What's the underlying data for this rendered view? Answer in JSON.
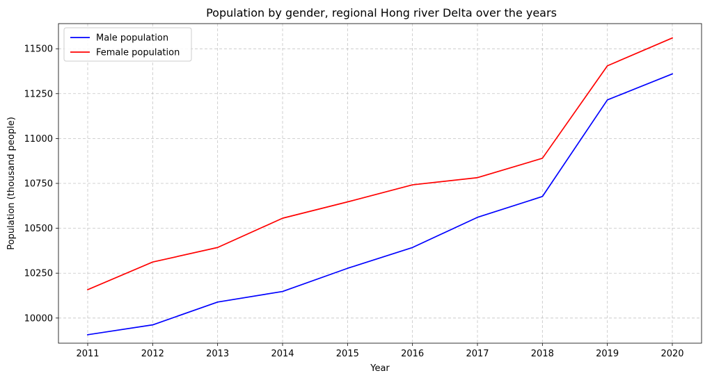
{
  "chart_data": {
    "type": "line",
    "title": "Population by gender, regional Hong river Delta over the years",
    "xlabel": "Year",
    "ylabel": "Population (thousand people)",
    "x": [
      2011,
      2012,
      2013,
      2014,
      2015,
      2016,
      2017,
      2018,
      2019,
      2020
    ],
    "ylim": [
      9860,
      11640
    ],
    "yticks": [
      10000,
      10250,
      10500,
      10750,
      11000,
      11250,
      11500
    ],
    "grid": true,
    "legend_position": "top-left",
    "series": [
      {
        "name": "Male population",
        "color": "#0000ff",
        "values": [
          9907,
          9962,
          10089,
          10148,
          10277,
          10393,
          10561,
          10677,
          11215,
          11360
        ]
      },
      {
        "name": "Female population",
        "color": "#ff0000",
        "values": [
          10158,
          10312,
          10393,
          10556,
          10647,
          10742,
          10782,
          10890,
          11405,
          11560
        ]
      }
    ]
  }
}
